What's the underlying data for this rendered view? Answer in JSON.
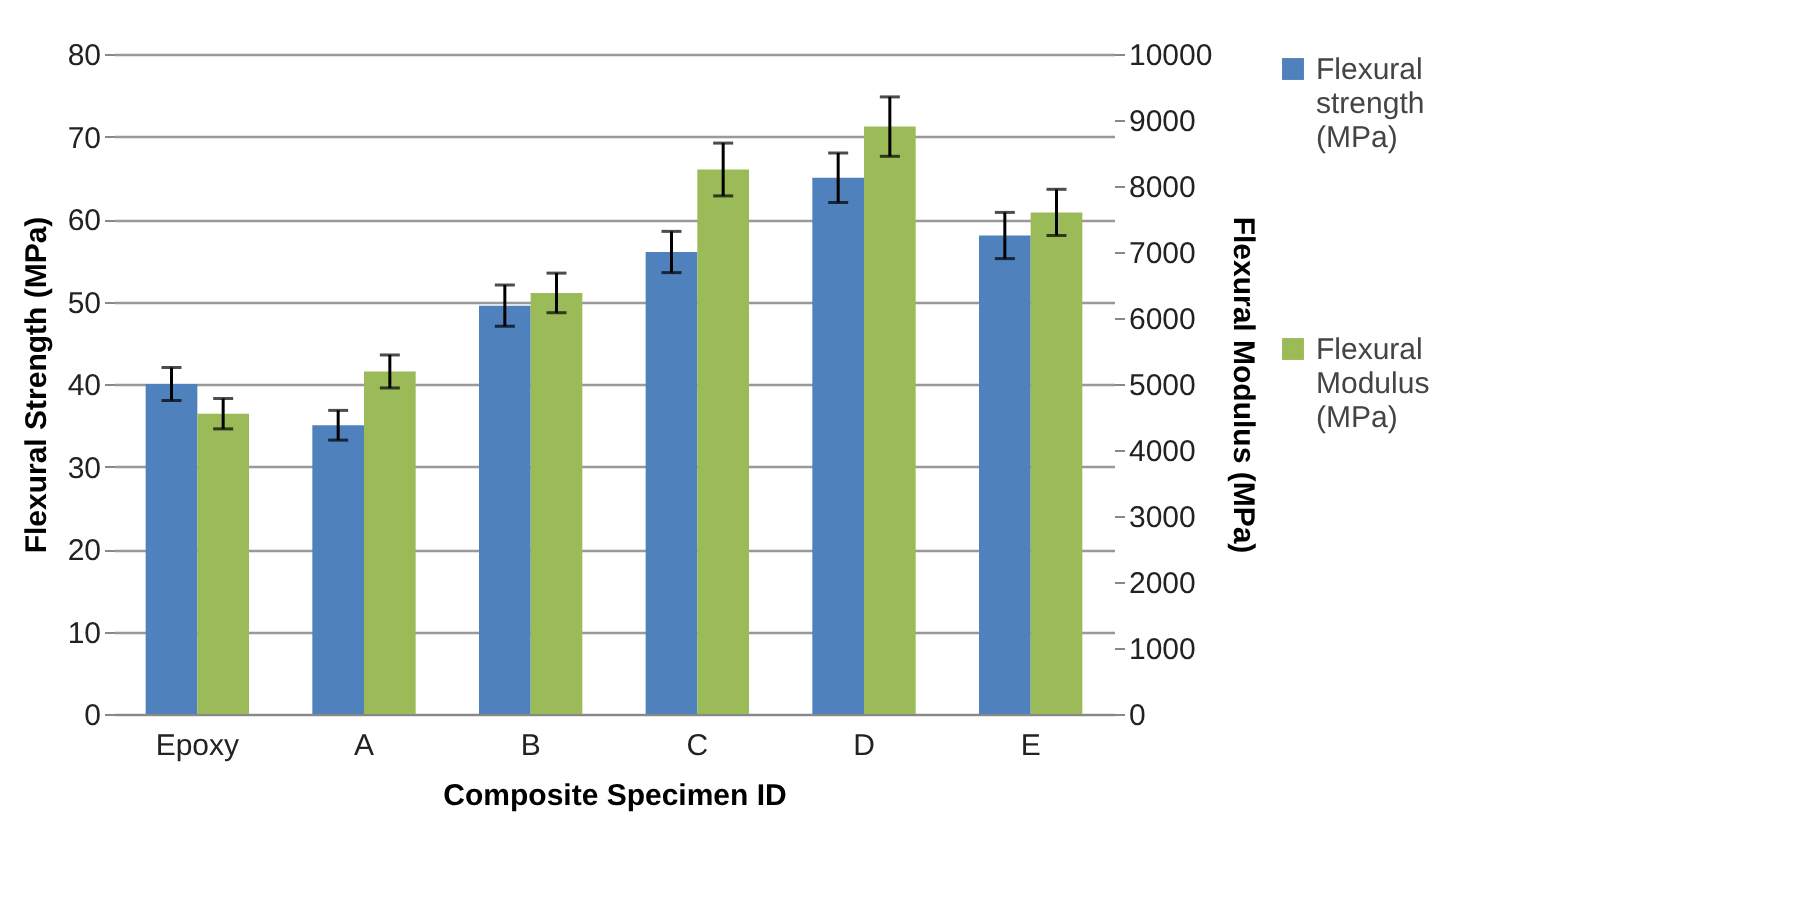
{
  "chart_data": {
    "type": "bar",
    "xlabel": "Composite Specimen ID",
    "ylabel": "Flexural Strength (MPa)",
    "y2label": "Flexural Modulus (MPa)",
    "categories": [
      "Epoxy",
      "A",
      "B",
      "C",
      "D",
      "E"
    ],
    "series": [
      {
        "name": "Flexural strength (MPa)",
        "color": "#4f81bd",
        "values": [
          40,
          35,
          49.5,
          56,
          65,
          58
        ],
        "errors": [
          2,
          1.8,
          2.5,
          2.5,
          3,
          2.8
        ]
      },
      {
        "name": "Flexural Modulus (MPa)",
        "color": "#9bbb59",
        "axis": "y2",
        "values": [
          4550,
          5190,
          6380,
          8250,
          8900,
          7600
        ],
        "errors": [
          230,
          250,
          300,
          400,
          450,
          350
        ]
      }
    ],
    "ylim": [
      0,
      80
    ],
    "yticks": [
      0,
      10,
      20,
      30,
      40,
      50,
      60,
      70,
      80
    ],
    "y2lim": [
      0,
      10000
    ],
    "y2ticks": [
      0,
      1000,
      2000,
      3000,
      4000,
      5000,
      6000,
      7000,
      8000,
      9000,
      10000
    ],
    "grid": "y",
    "legend": "right"
  }
}
